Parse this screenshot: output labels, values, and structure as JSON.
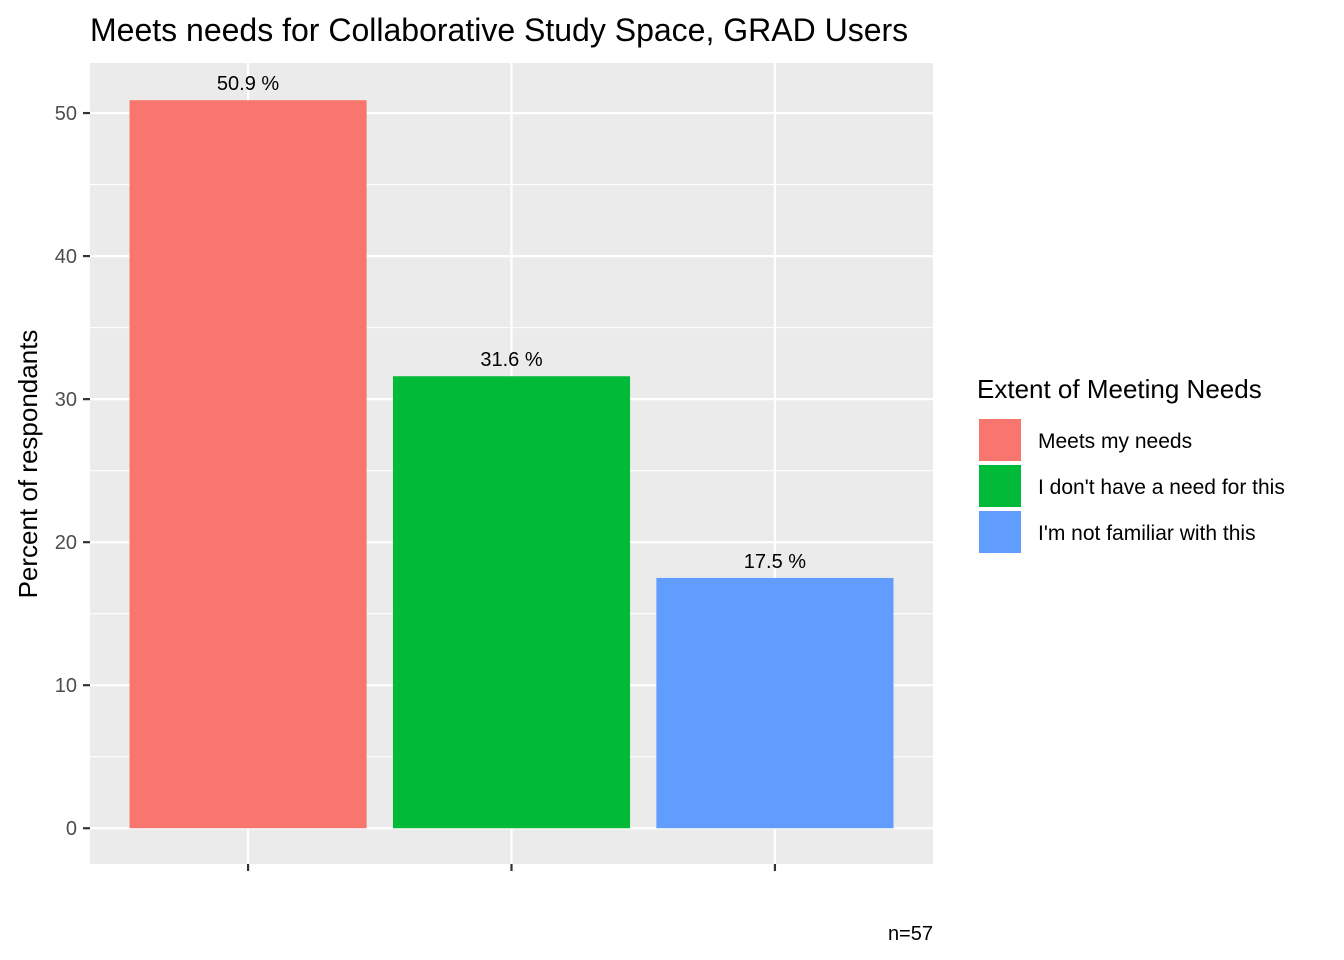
{
  "chart_data": {
    "type": "bar",
    "title": "Meets needs for Collaborative Study Space, GRAD Users",
    "xlabel": "",
    "ylabel": "Percent of respondants",
    "ylim": [
      -2.5,
      53.5
    ],
    "yticks": [
      0,
      10,
      20,
      30,
      40,
      50
    ],
    "ytick_labels": [
      "0",
      "10",
      "20",
      "30",
      "40",
      "50"
    ],
    "categories": [
      "Meets my needs",
      "I don't have a need for this",
      "I'm not familiar with this"
    ],
    "values": [
      50.9,
      31.6,
      17.5
    ],
    "data_labels": [
      "50.9 %",
      "31.6 %",
      "17.5 %"
    ],
    "colors": [
      "#F8766D",
      "#00BA38",
      "#619CFF"
    ],
    "grid": true,
    "legend": {
      "title": "Extent of Meeting Needs",
      "position": "right",
      "items": [
        {
          "label": "Meets my needs",
          "color": "#F8766D"
        },
        {
          "label": "I don't have a need for this",
          "color": "#00BA38"
        },
        {
          "label": "I'm not familiar with this",
          "color": "#619CFF"
        }
      ]
    },
    "caption": "n=57",
    "panel_background": "#EBEBEB"
  }
}
